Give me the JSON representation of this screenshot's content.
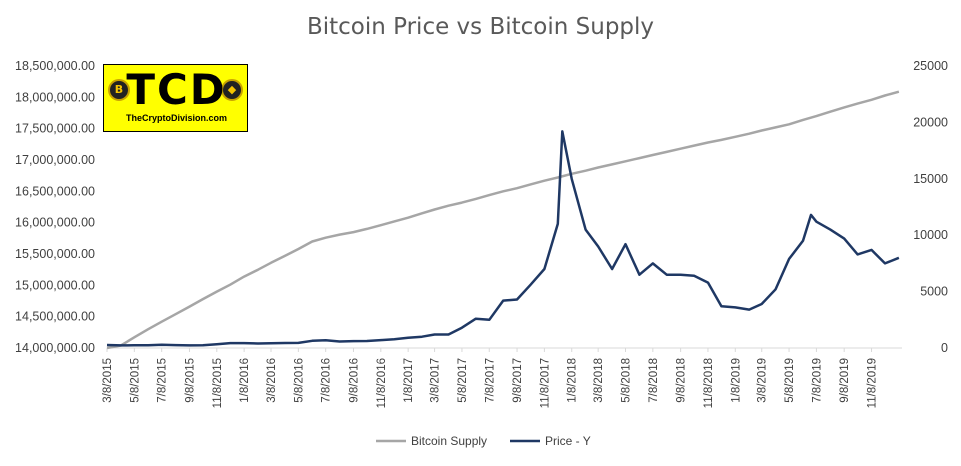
{
  "chart_data": {
    "type": "line",
    "title": "Bitcoin Price vs Bitcoin Supply",
    "legend_position": "bottom",
    "grid": false,
    "y_left": {
      "min": 14000000,
      "max": 18500000,
      "tick_labels": [
        "14,000,000.00",
        "14,500,000.00",
        "15,000,000.00",
        "15,500,000.00",
        "16,000,000.00",
        "16,500,000.00",
        "17,000,000.00",
        "17,500,000.00",
        "18,000,000.00",
        "18,500,000.00"
      ]
    },
    "y_right": {
      "min": 0,
      "max": 25000,
      "tick_labels": [
        "0",
        "5000",
        "10000",
        "15000",
        "20000",
        "25000"
      ]
    },
    "x_tick_labels": [
      "3/8/2015",
      "5/8/2015",
      "7/8/2015",
      "9/8/2015",
      "11/8/2015",
      "1/8/2016",
      "3/8/2016",
      "5/8/2016",
      "7/8/2016",
      "9/8/2016",
      "11/8/2016",
      "1/8/2017",
      "3/8/2017",
      "5/8/2017",
      "7/8/2017",
      "9/8/2017",
      "11/8/2017",
      "1/8/2018",
      "3/8/2018",
      "5/8/2018",
      "7/8/2018",
      "9/8/2018",
      "11/8/2018",
      "1/8/2019",
      "3/8/2019",
      "5/8/2019",
      "7/8/2019",
      "9/8/2019",
      "11/8/2019"
    ],
    "series": [
      {
        "name": "Bitcoin Supply",
        "color": "#a6a6a6",
        "axis": "left",
        "x": [
          "2015-03-08",
          "2015-04-08",
          "2015-05-08",
          "2015-06-08",
          "2015-07-08",
          "2015-08-08",
          "2015-09-08",
          "2015-10-08",
          "2015-11-08",
          "2015-12-08",
          "2016-01-08",
          "2016-02-08",
          "2016-03-08",
          "2016-04-08",
          "2016-05-08",
          "2016-06-08",
          "2016-07-08",
          "2016-08-08",
          "2016-09-08",
          "2016-10-08",
          "2016-11-08",
          "2016-12-08",
          "2017-01-08",
          "2017-02-08",
          "2017-03-08",
          "2017-04-08",
          "2017-05-08",
          "2017-06-08",
          "2017-07-08",
          "2017-08-08",
          "2017-09-08",
          "2017-10-08",
          "2017-11-08",
          "2017-12-08",
          "2018-01-08",
          "2018-02-08",
          "2018-03-08",
          "2018-04-08",
          "2018-05-08",
          "2018-06-08",
          "2018-07-08",
          "2018-08-08",
          "2018-09-08",
          "2018-10-08",
          "2018-11-08",
          "2018-12-08",
          "2019-01-08",
          "2019-02-08",
          "2019-03-08",
          "2019-04-08",
          "2019-05-08",
          "2019-06-08",
          "2019-07-08",
          "2019-08-08",
          "2019-09-08",
          "2019-10-08",
          "2019-11-08",
          "2019-12-08",
          "2020-01-08"
        ],
        "values": [
          14000000,
          14040000,
          14170000,
          14300000,
          14420000,
          14540000,
          14660000,
          14780000,
          14900000,
          15010000,
          15140000,
          15250000,
          15360000,
          15470000,
          15580000,
          15700000,
          15760000,
          15810000,
          15850000,
          15900000,
          15960000,
          16020000,
          16080000,
          16150000,
          16210000,
          16270000,
          16320000,
          16380000,
          16440000,
          16500000,
          16550000,
          16610000,
          16670000,
          16720000,
          16780000,
          16830000,
          16880000,
          16930000,
          16980000,
          17030000,
          17080000,
          17130000,
          17180000,
          17230000,
          17280000,
          17320000,
          17370000,
          17420000,
          17470000,
          17520000,
          17570000,
          17640000,
          17700000,
          17770000,
          17840000,
          17900000,
          17960000,
          18030000,
          18090000
        ]
      },
      {
        "name": "Price - Y",
        "color": "#1f3864",
        "axis": "right",
        "x": [
          "2015-03-08",
          "2015-04-08",
          "2015-05-08",
          "2015-06-08",
          "2015-07-08",
          "2015-08-08",
          "2015-09-08",
          "2015-10-08",
          "2015-11-08",
          "2015-12-08",
          "2016-01-08",
          "2016-02-08",
          "2016-03-08",
          "2016-04-08",
          "2016-05-08",
          "2016-06-08",
          "2016-07-08",
          "2016-08-08",
          "2016-09-08",
          "2016-10-08",
          "2016-11-08",
          "2016-12-08",
          "2017-01-08",
          "2017-02-08",
          "2017-03-08",
          "2017-04-08",
          "2017-05-08",
          "2017-06-08",
          "2017-07-08",
          "2017-08-08",
          "2017-09-08",
          "2017-10-08",
          "2017-11-08",
          "2017-12-08",
          "2017-12-18",
          "2018-01-08",
          "2018-02-08",
          "2018-03-08",
          "2018-04-08",
          "2018-05-08",
          "2018-06-08",
          "2018-07-08",
          "2018-08-08",
          "2018-09-08",
          "2018-10-08",
          "2018-11-08",
          "2018-12-08",
          "2019-01-08",
          "2019-02-08",
          "2019-03-08",
          "2019-04-08",
          "2019-05-08",
          "2019-06-08",
          "2019-06-26",
          "2019-07-08",
          "2019-08-08",
          "2019-09-08",
          "2019-10-08",
          "2019-11-08",
          "2019-12-08",
          "2020-01-08"
        ],
        "values": [
          270,
          230,
          240,
          240,
          280,
          260,
          230,
          240,
          330,
          430,
          430,
          400,
          420,
          440,
          450,
          640,
          680,
          580,
          610,
          620,
          700,
          780,
          900,
          1000,
          1200,
          1200,
          1800,
          2600,
          2500,
          4200,
          4300,
          5600,
          7000,
          11000,
          19200,
          15000,
          10500,
          9000,
          7000,
          9200,
          6500,
          7500,
          6500,
          6500,
          6400,
          5800,
          3700,
          3600,
          3400,
          3900,
          5200,
          7900,
          9500,
          11800,
          11200,
          10500,
          9700,
          8300,
          8700,
          7500,
          8000
        ]
      }
    ]
  },
  "logo": {
    "main_text": "TCD",
    "sub_text": "TheCryptoDivision.com"
  }
}
